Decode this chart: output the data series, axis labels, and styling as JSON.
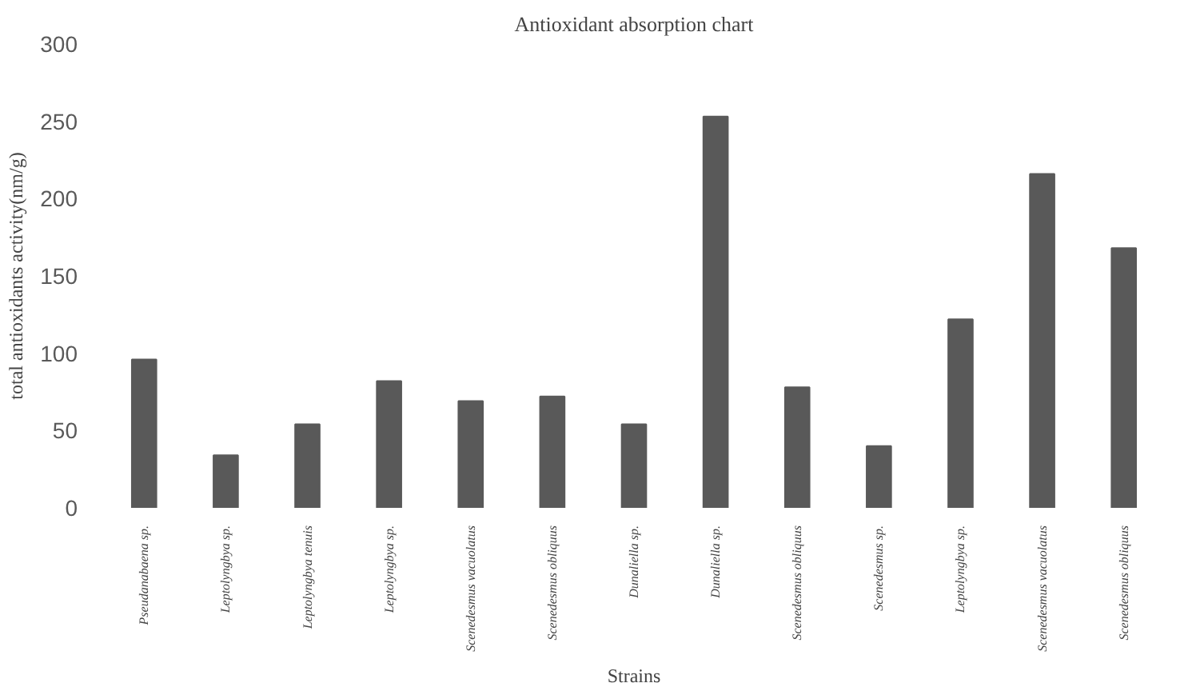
{
  "chart_data": {
    "type": "bar",
    "title": "Antioxidant absorption chart",
    "xlabel": "Strains",
    "ylabel": "total antioxidants activity(nm/g)",
    "categories": [
      "Pseudanabaena sp.",
      "Leptolyngbya sp.",
      "Leptolyngbya tenuis",
      "Leptolyngbya sp.",
      "Scenedesmus vacuolatus",
      "Scenedesmus obliquus",
      "Dunaliella sp.",
      "Dunaliella sp.",
      "Scenedesmus obliquus",
      "Scenedesmus sp.",
      "Leptolyngbya sp.",
      "Scenedesmus vacuolatus",
      "Scenedesmus obliquus"
    ],
    "values": [
      96,
      34,
      54,
      82,
      69,
      72,
      54,
      253,
      78,
      40,
      122,
      216,
      168
    ],
    "color": "#595959",
    "ylim": [
      0,
      300
    ],
    "yticks": [
      0,
      50,
      100,
      150,
      200,
      250,
      300
    ],
    "grid": false
  }
}
